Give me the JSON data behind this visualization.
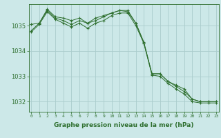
{
  "background_color": "#cce8e8",
  "grid_color": "#aacccc",
  "line_color": "#2d6e2d",
  "marker_color": "#2d6e2d",
  "title": "Graphe pression niveau de la mer (hPa)",
  "x_ticks": [
    0,
    1,
    2,
    3,
    4,
    5,
    6,
    7,
    8,
    9,
    10,
    11,
    12,
    13,
    14,
    15,
    16,
    17,
    18,
    19,
    20,
    21,
    22,
    23
  ],
  "y_ticks": [
    1032,
    1033,
    1034,
    1035
  ],
  "ylim": [
    1031.6,
    1035.85
  ],
  "xlim": [
    -0.3,
    23.3
  ],
  "series": [
    [
      1034.8,
      1035.1,
      1035.65,
      1035.35,
      1035.3,
      1035.2,
      1035.3,
      1035.1,
      1035.3,
      1035.4,
      1035.5,
      1035.6,
      1035.6,
      1035.1,
      1034.3,
      1033.1,
      1033.1,
      1032.8,
      1032.65,
      1032.5,
      1032.1,
      1032.0,
      1032.0,
      1032.0
    ],
    [
      1035.05,
      1035.1,
      1035.6,
      1035.3,
      1035.2,
      1035.05,
      1035.2,
      1035.1,
      1035.2,
      1035.35,
      1035.5,
      1035.6,
      1035.55,
      1035.1,
      1034.35,
      1033.1,
      1033.1,
      1032.8,
      1032.6,
      1032.4,
      1032.1,
      1032.0,
      1032.0,
      1032.0
    ],
    [
      1034.75,
      1035.05,
      1035.55,
      1035.25,
      1035.1,
      1034.95,
      1035.1,
      1034.9,
      1035.1,
      1035.2,
      1035.4,
      1035.5,
      1035.5,
      1035.0,
      1034.3,
      1033.05,
      1033.0,
      1032.72,
      1032.5,
      1032.3,
      1032.0,
      1031.95,
      1031.95,
      1031.95
    ]
  ]
}
